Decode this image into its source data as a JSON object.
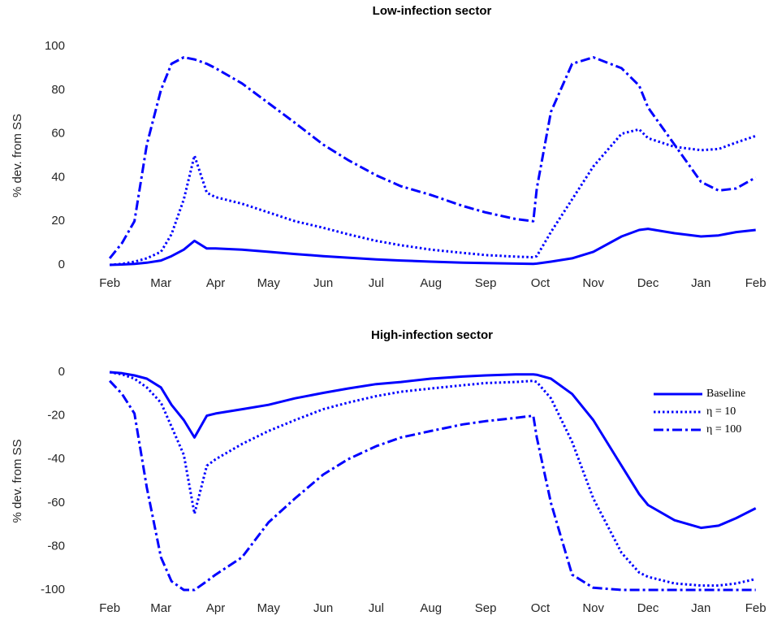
{
  "chart_data": [
    {
      "type": "line",
      "title": "Low-infection sector",
      "y_label": "% dev. from SS",
      "x": [
        0,
        7,
        14,
        21,
        29,
        35,
        42,
        48,
        55,
        60,
        75,
        90,
        105,
        121,
        135,
        151,
        165,
        182,
        200,
        213,
        230,
        240,
        242,
        250,
        262,
        274,
        290,
        300,
        305,
        320,
        335,
        345,
        355,
        366
      ],
      "xlim": [
        -18,
        368
      ],
      "xticks": [
        {
          "value": 0,
          "label": "Feb"
        },
        {
          "value": 29,
          "label": "Mar"
        },
        {
          "value": 60,
          "label": "Apr"
        },
        {
          "value": 90,
          "label": "May"
        },
        {
          "value": 121,
          "label": "Jun"
        },
        {
          "value": 151,
          "label": "Jul"
        },
        {
          "value": 182,
          "label": "Aug"
        },
        {
          "value": 213,
          "label": "Sep"
        },
        {
          "value": 244,
          "label": "Oct"
        },
        {
          "value": 274,
          "label": "Nov"
        },
        {
          "value": 305,
          "label": "Dec"
        },
        {
          "value": 335,
          "label": "Jan"
        },
        {
          "value": 366,
          "label": "Feb"
        }
      ],
      "ylim": [
        0,
        100
      ],
      "yticks": [
        0,
        20,
        40,
        60,
        80,
        100
      ],
      "series": [
        {
          "color": "#0000ff",
          "linestyle": "solid",
          "values": [
            0,
            0.2,
            0.5,
            1,
            2,
            4,
            7,
            11,
            7.5,
            7.5,
            7,
            6,
            5,
            4,
            3.3,
            2.5,
            2,
            1.5,
            1,
            0.8,
            0.6,
            0.5,
            0.6,
            1.5,
            3,
            6,
            13,
            16,
            16.5,
            14.5,
            13,
            13.5,
            15,
            16
          ]
        },
        {
          "color": "#0000ff",
          "linestyle": "dotted",
          "values": [
            0,
            0.5,
            1.5,
            3,
            6,
            14,
            30,
            50,
            33,
            31,
            28,
            24,
            20,
            17,
            14,
            11,
            9,
            7,
            5.5,
            4.5,
            3.8,
            3.5,
            4,
            15,
            30,
            45,
            60,
            62,
            58,
            54,
            52.5,
            53,
            56,
            59
          ]
        },
        {
          "color": "#0000ff",
          "linestyle": "dashdot",
          "values": [
            3,
            10,
            20,
            55,
            80,
            92,
            95,
            94,
            92,
            90,
            83,
            74,
            65,
            55,
            48,
            41,
            36,
            32,
            27,
            24,
            21,
            20,
            35,
            70,
            92,
            95,
            90,
            82,
            72,
            55,
            38,
            34,
            35,
            40
          ]
        }
      ]
    },
    {
      "type": "line",
      "title": "High-infection sector",
      "y_label": "% dev. from SS",
      "x": [
        0,
        7,
        14,
        21,
        29,
        35,
        42,
        48,
        55,
        60,
        75,
        90,
        105,
        121,
        135,
        151,
        165,
        182,
        200,
        213,
        230,
        240,
        242,
        250,
        262,
        274,
        290,
        300,
        305,
        320,
        335,
        345,
        355,
        366
      ],
      "xlim": [
        -18,
        368
      ],
      "xticks": [
        {
          "value": 0,
          "label": "Feb"
        },
        {
          "value": 29,
          "label": "Mar"
        },
        {
          "value": 60,
          "label": "Apr"
        },
        {
          "value": 90,
          "label": "May"
        },
        {
          "value": 121,
          "label": "Jun"
        },
        {
          "value": 151,
          "label": "Jul"
        },
        {
          "value": 182,
          "label": "Aug"
        },
        {
          "value": 213,
          "label": "Sep"
        },
        {
          "value": 244,
          "label": "Oct"
        },
        {
          "value": 274,
          "label": "Nov"
        },
        {
          "value": 305,
          "label": "Dec"
        },
        {
          "value": 335,
          "label": "Jan"
        },
        {
          "value": 366,
          "label": "Feb"
        }
      ],
      "ylim": [
        -100,
        0
      ],
      "yticks": [
        -100,
        -80,
        -60,
        -40,
        -20,
        0
      ],
      "legend": "upper right",
      "series": [
        {
          "name": "Baseline",
          "color": "#0000ff",
          "linestyle": "solid",
          "values": [
            0,
            -0.5,
            -1.5,
            -3,
            -7,
            -15,
            -22,
            -30,
            -20,
            -19,
            -17,
            -15,
            -12,
            -9.5,
            -7.5,
            -5.5,
            -4.5,
            -3,
            -2,
            -1.5,
            -1,
            -1,
            -1.2,
            -3,
            -10,
            -22,
            -43,
            -56,
            -61,
            -68,
            -71.5,
            -70.5,
            -67,
            -62.5
          ]
        },
        {
          "name": "η = 10",
          "color": "#0000ff",
          "linestyle": "dotted",
          "values": [
            0,
            -1,
            -3,
            -7,
            -14,
            -25,
            -38,
            -65,
            -43,
            -40,
            -33,
            -27,
            -22,
            -17,
            -14,
            -11,
            -9,
            -7.5,
            -6,
            -5,
            -4.5,
            -4,
            -4.5,
            -12,
            -32,
            -58,
            -83,
            -92,
            -94,
            -97,
            -98,
            -98,
            -97,
            -95
          ]
        },
        {
          "name": "η = 100",
          "color": "#0000ff",
          "linestyle": "dashdot",
          "values": [
            -4,
            -10,
            -19,
            -53,
            -85,
            -96,
            -100,
            -100,
            -96,
            -93,
            -85,
            -69,
            -58,
            -47,
            -40,
            -34,
            -30,
            -27,
            -24,
            -22.5,
            -21,
            -20,
            -30,
            -60,
            -93,
            -99,
            -100,
            -100,
            -100,
            -100,
            -100,
            -100,
            -100,
            -100
          ]
        }
      ]
    }
  ]
}
